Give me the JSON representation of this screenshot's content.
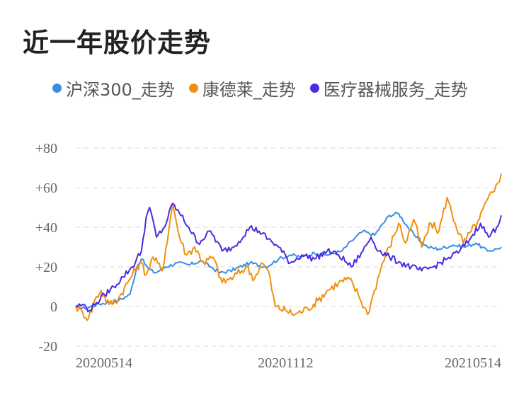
{
  "title": "近一年股价走势",
  "colors": {
    "hs300": "#3a8ee6",
    "kdl": "#f0900f",
    "yiliao": "#4b2be0",
    "grid": "#e6e6e6"
  },
  "chart_data": {
    "type": "line",
    "title": "近一年股价走势",
    "x_ticks": [
      "20200514",
      "20201112",
      "20210514"
    ],
    "y_ticks": [
      "+80",
      "+60",
      "+40",
      "+20",
      "0",
      "-20"
    ],
    "ylim": [
      -20,
      80
    ],
    "grid": "horizontal-dashed",
    "legend_position": "top",
    "x_range": [
      "2020-05-14",
      "2021-05-18"
    ],
    "series": [
      {
        "name": "沪深300_走势",
        "color_key": "hs300",
        "points": [
          [
            "2020-05-14",
            0
          ],
          [
            "2020-05-22",
            -1
          ],
          [
            "2020-06-01",
            1
          ],
          [
            "2020-06-10",
            2
          ],
          [
            "2020-06-20",
            3
          ],
          [
            "2020-06-30",
            6
          ],
          [
            "2020-07-06",
            20
          ],
          [
            "2020-07-10",
            24
          ],
          [
            "2020-07-16",
            19
          ],
          [
            "2020-07-22",
            17
          ],
          [
            "2020-07-31",
            20
          ],
          [
            "2020-08-10",
            22
          ],
          [
            "2020-08-20",
            21
          ],
          [
            "2020-08-31",
            23
          ],
          [
            "2020-09-08",
            20
          ],
          [
            "2020-09-16",
            17
          ],
          [
            "2020-09-25",
            18
          ],
          [
            "2020-10-12",
            22
          ],
          [
            "2020-10-26",
            20
          ],
          [
            "2020-11-06",
            24
          ],
          [
            "2020-11-16",
            26
          ],
          [
            "2020-11-26",
            25
          ],
          [
            "2020-12-07",
            27
          ],
          [
            "2020-12-18",
            26
          ],
          [
            "2020-12-31",
            28
          ],
          [
            "2021-01-08",
            33
          ],
          [
            "2021-01-18",
            38
          ],
          [
            "2021-01-28",
            36
          ],
          [
            "2021-02-10",
            46
          ],
          [
            "2021-02-18",
            47
          ],
          [
            "2021-02-26",
            40
          ],
          [
            "2021-03-05",
            35
          ],
          [
            "2021-03-15",
            30
          ],
          [
            "2021-03-25",
            29
          ],
          [
            "2021-04-06",
            31
          ],
          [
            "2021-04-16",
            30
          ],
          [
            "2021-04-26",
            32
          ],
          [
            "2021-05-06",
            28
          ],
          [
            "2021-05-14",
            29
          ],
          [
            "2021-05-18",
            30
          ]
        ]
      },
      {
        "name": "康德莱_走势",
        "color_key": "kdl",
        "points": [
          [
            "2020-05-14",
            0
          ],
          [
            "2020-05-20",
            -3
          ],
          [
            "2020-05-25",
            -6
          ],
          [
            "2020-06-01",
            5
          ],
          [
            "2020-06-05",
            8
          ],
          [
            "2020-06-12",
            1
          ],
          [
            "2020-06-20",
            4
          ],
          [
            "2020-06-28",
            12
          ],
          [
            "2020-07-06",
            20
          ],
          [
            "2020-07-10",
            22
          ],
          [
            "2020-07-14",
            16
          ],
          [
            "2020-07-20",
            25
          ],
          [
            "2020-07-28",
            18
          ],
          [
            "2020-08-03",
            40
          ],
          [
            "2020-08-06",
            52
          ],
          [
            "2020-08-12",
            35
          ],
          [
            "2020-08-18",
            26
          ],
          [
            "2020-08-25",
            30
          ],
          [
            "2020-09-02",
            22
          ],
          [
            "2020-09-10",
            25
          ],
          [
            "2020-09-18",
            12
          ],
          [
            "2020-09-28",
            15
          ],
          [
            "2020-10-09",
            20
          ],
          [
            "2020-10-16",
            14
          ],
          [
            "2020-10-22",
            22
          ],
          [
            "2020-10-28",
            18
          ],
          [
            "2020-11-03",
            0
          ],
          [
            "2020-11-12",
            -2
          ],
          [
            "2020-11-20",
            -4
          ],
          [
            "2020-12-01",
            -1
          ],
          [
            "2020-12-10",
            3
          ],
          [
            "2020-12-18",
            8
          ],
          [
            "2020-12-28",
            12
          ],
          [
            "2021-01-06",
            14
          ],
          [
            "2021-01-14",
            6
          ],
          [
            "2021-01-22",
            -4
          ],
          [
            "2021-01-28",
            8
          ],
          [
            "2021-02-04",
            22
          ],
          [
            "2021-02-10",
            30
          ],
          [
            "2021-02-18",
            42
          ],
          [
            "2021-02-24",
            32
          ],
          [
            "2021-03-03",
            44
          ],
          [
            "2021-03-10",
            30
          ],
          [
            "2021-03-18",
            42
          ],
          [
            "2021-03-25",
            38
          ],
          [
            "2021-04-01",
            55
          ],
          [
            "2021-04-08",
            42
          ],
          [
            "2021-04-15",
            32
          ],
          [
            "2021-04-22",
            38
          ],
          [
            "2021-04-29",
            44
          ],
          [
            "2021-05-06",
            54
          ],
          [
            "2021-05-12",
            58
          ],
          [
            "2021-05-18",
            67
          ]
        ]
      },
      {
        "name": "医疗器械服务_走势",
        "color_key": "yiliao",
        "points": [
          [
            "2020-05-14",
            0
          ],
          [
            "2020-05-20",
            1
          ],
          [
            "2020-05-26",
            -2
          ],
          [
            "2020-06-01",
            2
          ],
          [
            "2020-06-08",
            6
          ],
          [
            "2020-06-16",
            10
          ],
          [
            "2020-06-24",
            15
          ],
          [
            "2020-07-02",
            20
          ],
          [
            "2020-07-10",
            28
          ],
          [
            "2020-07-14",
            45
          ],
          [
            "2020-07-17",
            50
          ],
          [
            "2020-07-23",
            35
          ],
          [
            "2020-07-30",
            40
          ],
          [
            "2020-08-06",
            52
          ],
          [
            "2020-08-12",
            47
          ],
          [
            "2020-08-20",
            40
          ],
          [
            "2020-08-28",
            32
          ],
          [
            "2020-09-08",
            38
          ],
          [
            "2020-09-18",
            28
          ],
          [
            "2020-09-28",
            30
          ],
          [
            "2020-10-12",
            40
          ],
          [
            "2020-10-20",
            38
          ],
          [
            "2020-10-28",
            34
          ],
          [
            "2020-11-06",
            30
          ],
          [
            "2020-11-16",
            22
          ],
          [
            "2020-11-26",
            26
          ],
          [
            "2020-12-07",
            24
          ],
          [
            "2020-12-18",
            28
          ],
          [
            "2020-12-28",
            26
          ],
          [
            "2021-01-08",
            20
          ],
          [
            "2021-01-18",
            28
          ],
          [
            "2021-01-25",
            35
          ],
          [
            "2021-02-01",
            28
          ],
          [
            "2021-02-10",
            25
          ],
          [
            "2021-02-20",
            22
          ],
          [
            "2021-03-01",
            20
          ],
          [
            "2021-03-10",
            18
          ],
          [
            "2021-03-20",
            20
          ],
          [
            "2021-04-01",
            24
          ],
          [
            "2021-04-12",
            28
          ],
          [
            "2021-04-22",
            35
          ],
          [
            "2021-04-30",
            42
          ],
          [
            "2021-05-07",
            35
          ],
          [
            "2021-05-14",
            40
          ],
          [
            "2021-05-18",
            46
          ]
        ]
      }
    ]
  }
}
